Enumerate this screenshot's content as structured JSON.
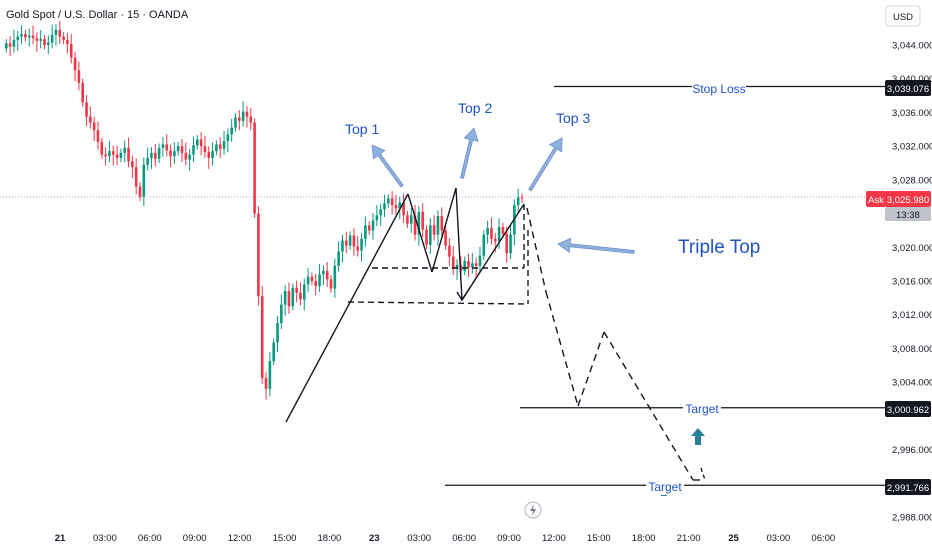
{
  "header": {
    "title": "Gold Spot / U.S. Dollar · 15 · OANDA",
    "currency": "USD"
  },
  "colors": {
    "up": "#089981",
    "down": "#f23645",
    "annotation": "#1e53c8",
    "arrow_fill": "#8fb0dd",
    "target_arrow": "#2a7f99",
    "ask": "#f23645"
  },
  "price_axis": {
    "ticks": [
      "3,044.000",
      "3,040.000",
      "3,036.000",
      "3,032.000",
      "3,028.000",
      "3,020.000",
      "3,016.000",
      "3,012.000",
      "3,008.000",
      "3,004.000",
      "2,996.000",
      "2,988.000"
    ],
    "tick_values": [
      3044,
      3040,
      3036,
      3032,
      3028,
      3020,
      3016,
      3012,
      3008,
      3004,
      2996,
      2988
    ]
  },
  "time_axis": {
    "labels": [
      "21",
      "03:00",
      "06:00",
      "09:00",
      "12:00",
      "15:00",
      "18:00",
      "23",
      "03:00",
      "06:00",
      "09:00",
      "12:00",
      "15:00",
      "18:00",
      "21:00",
      "25",
      "03:00",
      "06:00"
    ]
  },
  "price_tags": {
    "stop_loss": "3,039.076",
    "ask_label": "Ask",
    "ask_price": "3,025.980",
    "countdown": "13:38",
    "target_1": "3,000.962",
    "target_2": "2,991.766"
  },
  "annotations": {
    "top1": "Top 1",
    "top2": "Top 2",
    "top3": "Top 3",
    "pattern": "Triple Top",
    "stop_loss": "Stop Loss",
    "target_1": "Target",
    "target_2": "Target"
  },
  "chart_data": {
    "type": "candlestick",
    "title": "Gold Spot / U.S. Dollar · 15 · OANDA",
    "instrument": "XAUUSD",
    "timeframe": "15",
    "ylim": [
      2986.5,
      3048.5
    ],
    "levels": {
      "stop_loss": 3039.076,
      "ask": 3025.98,
      "target_1": 3000.962,
      "target_2": 2991.766
    },
    "pattern": "Triple Top",
    "close_path": [
      3044.2,
      3043.8,
      3044.6,
      3045.0,
      3045.3,
      3044.9,
      3045.1,
      3044.8,
      3044.5,
      3044.7,
      3044.0,
      3044.3,
      3045.2,
      3045.8,
      3045.0,
      3044.6,
      3044.1,
      3042.5,
      3041.0,
      3039.5,
      3037.2,
      3035.5,
      3034.8,
      3033.9,
      3032.5,
      3031.0,
      3030.8,
      3031.4,
      3031.0,
      3030.6,
      3031.2,
      3031.8,
      3030.2,
      3029.5,
      3027.2,
      3026.0,
      3029.8,
      3030.6,
      3031.2,
      3030.5,
      3031.8,
      3032.2,
      3031.5,
      3030.8,
      3031.4,
      3032.0,
      3031.2,
      3030.4,
      3031.0,
      3032.1,
      3032.8,
      3032.0,
      3031.3,
      3030.6,
      3031.4,
      3032.2,
      3031.7,
      3032.6,
      3033.4,
      3034.2,
      3035.4,
      3035.0,
      3036.1,
      3035.5,
      3034.8,
      3024.0,
      3014.2,
      3004.5,
      3003.2,
      3006.5,
      3008.7,
      3011.0,
      3013.2,
      3014.8,
      3013.0,
      3015.2,
      3014.6,
      3013.8,
      3015.6,
      3016.5,
      3016.0,
      3015.4,
      3016.8,
      3017.2,
      3016.2,
      3015.1,
      3017.8,
      3019.5,
      3020.8,
      3020.2,
      3021.4,
      3020.1,
      3019.6,
      3021.0,
      3022.6,
      3022.0,
      3023.2,
      3023.8,
      3024.5,
      3025.2,
      3025.8,
      3025.0,
      3024.6,
      3025.3,
      3023.8,
      3022.8,
      3023.8,
      3021.5,
      3024.2,
      3022.1,
      3020.3,
      3022.6,
      3021.5,
      3023.7,
      3022.0,
      3020.2,
      3018.9,
      3017.4,
      3017.9,
      3017.2,
      3018.4,
      3017.6,
      3018.1,
      3017.8,
      3019.0,
      3021.5,
      3022.3,
      3021.0,
      3020.7,
      3022.4,
      3021.6,
      3019.3,
      3021.5,
      3025.0,
      3025.9,
      3025.8
    ],
    "projection_path": [
      3025.8,
      3016.0,
      3001.4,
      3009.8,
      2992.8,
      2991.766
    ]
  }
}
